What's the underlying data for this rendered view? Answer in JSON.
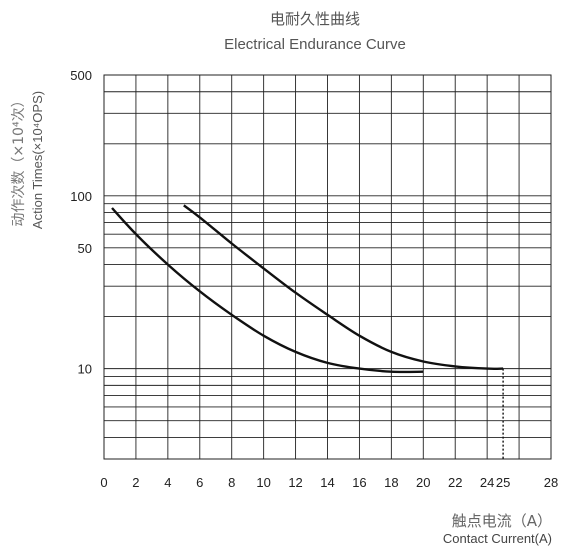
{
  "chart_data": {
    "type": "line",
    "title": "电耐久性曲线",
    "subtitle": "Electrical Endurance Curve",
    "ylabel_cn": "动作次数（×10⁴次）",
    "ylabel_en": "Action Times(×10⁴OPS)",
    "xlabel_cn": "触点电流（A）",
    "xlabel_en": "Contact Current(A)",
    "y_scale": "log",
    "xlim": [
      0,
      28
    ],
    "ylim": [
      3,
      500
    ],
    "x_ticks": [
      "0",
      "2",
      "4",
      "6",
      "8",
      "10",
      "12",
      "14",
      "16",
      "18",
      "20",
      "22",
      "24",
      "25",
      "28"
    ],
    "x_tick_values": [
      0,
      2,
      4,
      6,
      8,
      10,
      12,
      14,
      16,
      18,
      20,
      22,
      24,
      25,
      28
    ],
    "y_ticks": [
      "500",
      "100",
      "50",
      "10"
    ],
    "y_tick_values": [
      500,
      100,
      50,
      10
    ],
    "grid": true,
    "vertical_marker_x": 25,
    "series": [
      {
        "x": [
          0.5,
          2,
          4,
          6,
          8,
          10,
          12,
          14,
          16,
          18,
          20
        ],
        "values": [
          85,
          60,
          40,
          28,
          20.5,
          15.5,
          12.5,
          10.8,
          10,
          9.6,
          9.6
        ]
      },
      {
        "x": [
          5,
          6,
          8,
          10,
          12,
          14,
          16,
          18,
          20,
          22,
          24,
          25
        ],
        "values": [
          88,
          75,
          53,
          38,
          27.5,
          20.5,
          15.5,
          12.5,
          11,
          10.3,
          10,
          10
        ]
      }
    ]
  }
}
